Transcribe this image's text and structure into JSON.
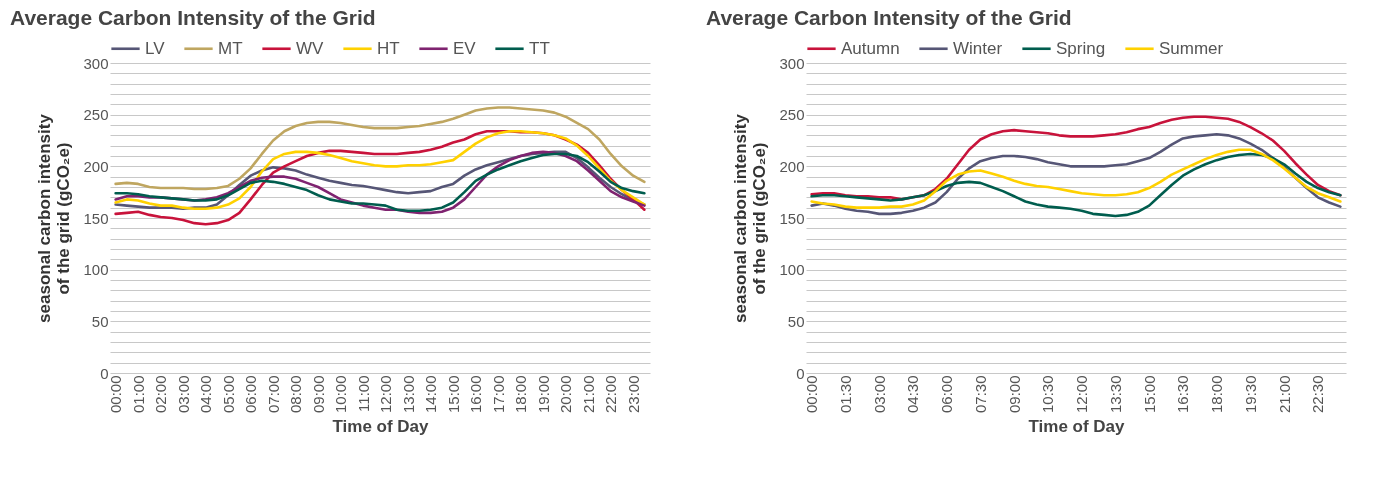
{
  "chart_data": [
    {
      "type": "line",
      "title": "Average Carbon Intensity of the Grid",
      "xlabel": "Time of Day",
      "ylabel": "seasonal carbon intensity of the grid (gCO₂e)",
      "legend": "top left",
      "grid": "y",
      "categories": [
        "00:00",
        null,
        "01:00",
        null,
        "02:00",
        null,
        "03:00",
        null,
        "04:00",
        null,
        "05:00",
        null,
        "06:00",
        null,
        "07:00",
        null,
        "08:00",
        null,
        "09:00",
        null,
        "10:00",
        null,
        "11:00",
        null,
        "12:00",
        null,
        "13:00",
        null,
        "14:00",
        null,
        "15:00",
        null,
        "16:00",
        null,
        "17:00",
        null,
        "18:00",
        null,
        "19:00",
        null,
        "20:00",
        null,
        "21:00",
        null,
        "22:00",
        null,
        "23:00",
        null
      ],
      "ylim": [
        0,
        300
      ],
      "yticks": [
        0,
        {
          "value": 10,
          "label": null
        },
        {
          "value": 20,
          "label": null
        },
        {
          "value": 30,
          "label": null
        },
        {
          "value": 40,
          "label": null
        },
        50,
        {
          "value": 60,
          "label": null
        },
        {
          "value": 70,
          "label": null
        },
        {
          "value": 80,
          "label": null
        },
        {
          "value": 90,
          "label": null
        },
        100,
        {
          "value": 110,
          "label": null
        },
        {
          "value": 120,
          "label": null
        },
        {
          "value": 130,
          "label": null
        },
        {
          "value": 140,
          "label": null
        },
        150,
        {
          "value": 160,
          "label": null
        },
        {
          "value": 170,
          "label": null
        },
        {
          "value": 180,
          "label": null
        },
        {
          "value": 190,
          "label": null
        },
        200,
        {
          "value": 210,
          "label": null
        },
        {
          "value": 220,
          "label": null
        },
        {
          "value": 230,
          "label": null
        },
        {
          "value": 240,
          "label": null
        },
        250,
        {
          "value": 260,
          "label": null
        },
        {
          "value": 270,
          "label": null
        },
        {
          "value": 280,
          "label": null
        },
        {
          "value": 290,
          "label": null
        },
        300
      ],
      "series": [
        {
          "name": "LV",
          "color": "#565676",
          "values": [
            163,
            162,
            161,
            160,
            160,
            160,
            159,
            160,
            160,
            163,
            172,
            182,
            191,
            196,
            199,
            198,
            196,
            192,
            189,
            186,
            184,
            182,
            181,
            179,
            177,
            175,
            174,
            175,
            176,
            180,
            183,
            191,
            197,
            201,
            204,
            207,
            210,
            212,
            213,
            214,
            214,
            208,
            199,
            189,
            180,
            173,
            167,
            163
          ]
        },
        {
          "name": "MT",
          "color": "#bfa660",
          "values": [
            183,
            184,
            183,
            180,
            179,
            179,
            179,
            178,
            178,
            179,
            181,
            188,
            198,
            212,
            225,
            234,
            239,
            242,
            243,
            243,
            242,
            240,
            238,
            237,
            237,
            237,
            238,
            239,
            241,
            243,
            246,
            250,
            254,
            256,
            257,
            257,
            256,
            255,
            254,
            252,
            248,
            242,
            236,
            226,
            212,
            200,
            191,
            185
          ]
        },
        {
          "name": "WV",
          "color": "#c8133b",
          "values": [
            154,
            155,
            156,
            153,
            151,
            150,
            148,
            145,
            144,
            145,
            148,
            155,
            168,
            182,
            194,
            200,
            205,
            210,
            213,
            215,
            215,
            214,
            213,
            212,
            212,
            212,
            213,
            214,
            216,
            219,
            223,
            226,
            231,
            234,
            234,
            234,
            233,
            233,
            232,
            230,
            226,
            221,
            213,
            201,
            188,
            177,
            168,
            158
          ]
        },
        {
          "name": "HT",
          "color": "#ffd100",
          "values": [
            165,
            168,
            167,
            164,
            162,
            162,
            160,
            159,
            159,
            160,
            163,
            169,
            180,
            195,
            207,
            212,
            214,
            214,
            213,
            211,
            208,
            205,
            203,
            201,
            200,
            200,
            201,
            201,
            202,
            204,
            206,
            214,
            222,
            228,
            232,
            234,
            234,
            233,
            232,
            230,
            227,
            220,
            210,
            198,
            186,
            177,
            170,
            163
          ]
        },
        {
          "name": "EV",
          "color": "#7f2370",
          "values": [
            168,
            171,
            171,
            170,
            170,
            169,
            168,
            167,
            168,
            170,
            174,
            180,
            186,
            189,
            190,
            190,
            188,
            184,
            180,
            174,
            168,
            165,
            162,
            160,
            158,
            158,
            156,
            155,
            155,
            156,
            160,
            168,
            180,
            192,
            200,
            206,
            210,
            213,
            214,
            213,
            210,
            205,
            196,
            186,
            176,
            170,
            166,
            162
          ]
        },
        {
          "name": "TT",
          "color": "#005d4e",
          "values": [
            174,
            174,
            173,
            171,
            170,
            169,
            168,
            167,
            167,
            168,
            172,
            178,
            184,
            186,
            185,
            183,
            180,
            177,
            172,
            168,
            166,
            164,
            164,
            163,
            162,
            158,
            157,
            157,
            158,
            160,
            165,
            175,
            186,
            192,
            197,
            201,
            205,
            208,
            211,
            212,
            212,
            210,
            204,
            195,
            185,
            179,
            176,
            174
          ]
        }
      ]
    },
    {
      "type": "line",
      "title": "Average Carbon Intensity of the Grid",
      "xlabel": "Time of Day",
      "ylabel": "seasonal carbon intensity of the grid (gCO₂e)",
      "legend": "top left",
      "grid": "y",
      "categories": [
        "00:00",
        null,
        null,
        "01:30",
        null,
        null,
        "03:00",
        null,
        null,
        "04:30",
        null,
        null,
        "06:00",
        null,
        null,
        "07:30",
        null,
        null,
        "09:00",
        null,
        null,
        "10:30",
        null,
        null,
        "12:00",
        null,
        null,
        "13:30",
        null,
        null,
        "15:00",
        null,
        null,
        "16:30",
        null,
        null,
        "18:00",
        null,
        null,
        "19:30",
        null,
        null,
        "21:00",
        null,
        null,
        "22:30",
        null,
        null
      ],
      "ylim": [
        0,
        300
      ],
      "yticks": [
        0,
        {
          "value": 10,
          "label": null
        },
        {
          "value": 20,
          "label": null
        },
        {
          "value": 30,
          "label": null
        },
        {
          "value": 40,
          "label": null
        },
        50,
        {
          "value": 60,
          "label": null
        },
        {
          "value": 70,
          "label": null
        },
        {
          "value": 80,
          "label": null
        },
        {
          "value": 90,
          "label": null
        },
        100,
        {
          "value": 110,
          "label": null
        },
        {
          "value": 120,
          "label": null
        },
        {
          "value": 130,
          "label": null
        },
        {
          "value": 140,
          "label": null
        },
        150,
        {
          "value": 160,
          "label": null
        },
        {
          "value": 170,
          "label": null
        },
        {
          "value": 180,
          "label": null
        },
        {
          "value": 190,
          "label": null
        },
        200,
        {
          "value": 210,
          "label": null
        },
        {
          "value": 220,
          "label": null
        },
        {
          "value": 230,
          "label": null
        },
        {
          "value": 240,
          "label": null
        },
        250,
        {
          "value": 260,
          "label": null
        },
        {
          "value": 270,
          "label": null
        },
        {
          "value": 280,
          "label": null
        },
        {
          "value": 290,
          "label": null
        },
        300
      ],
      "series": [
        {
          "name": "Autumn",
          "color": "#c8133b",
          "values": [
            173,
            174,
            174,
            172,
            171,
            171,
            170,
            170,
            168,
            170,
            172,
            178,
            188,
            202,
            216,
            226,
            231,
            234,
            235,
            234,
            233,
            232,
            230,
            229,
            229,
            229,
            230,
            231,
            233,
            236,
            238,
            242,
            245,
            247,
            248,
            248,
            247,
            246,
            243,
            238,
            232,
            225,
            215,
            203,
            192,
            182,
            176,
            172
          ]
        },
        {
          "name": "Winter",
          "color": "#565676",
          "values": [
            162,
            164,
            162,
            159,
            157,
            156,
            154,
            154,
            155,
            157,
            160,
            165,
            175,
            188,
            198,
            205,
            208,
            210,
            210,
            209,
            207,
            204,
            202,
            200,
            200,
            200,
            200,
            201,
            202,
            205,
            208,
            214,
            221,
            227,
            229,
            230,
            231,
            230,
            227,
            222,
            216,
            208,
            199,
            189,
            179,
            170,
            165,
            161
          ]
        },
        {
          "name": "Spring",
          "color": "#005d4e",
          "values": [
            171,
            172,
            172,
            171,
            170,
            169,
            168,
            167,
            168,
            170,
            172,
            176,
            181,
            184,
            185,
            184,
            180,
            176,
            171,
            166,
            163,
            161,
            160,
            159,
            157,
            154,
            153,
            152,
            153,
            156,
            162,
            172,
            182,
            191,
            197,
            202,
            206,
            209,
            211,
            212,
            211,
            208,
            202,
            193,
            185,
            179,
            175,
            172
          ]
        },
        {
          "name": "Summer",
          "color": "#ffd100",
          "values": [
            166,
            164,
            163,
            161,
            160,
            160,
            160,
            161,
            161,
            163,
            167,
            176,
            186,
            192,
            195,
            196,
            193,
            190,
            186,
            183,
            181,
            180,
            178,
            176,
            174,
            173,
            172,
            172,
            173,
            175,
            179,
            185,
            192,
            197,
            202,
            207,
            211,
            214,
            216,
            216,
            212,
            206,
            198,
            189,
            180,
            174,
            170,
            166
          ]
        }
      ]
    }
  ]
}
